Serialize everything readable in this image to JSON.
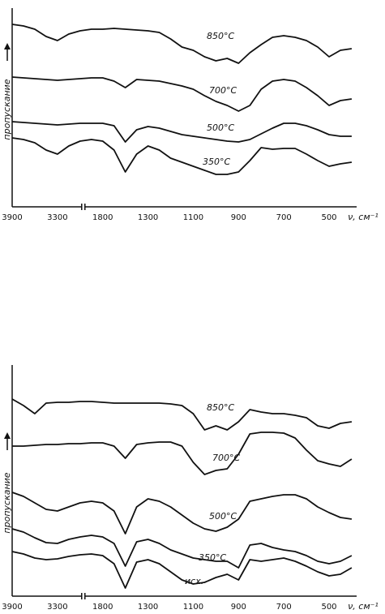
{
  "chart_data": [
    {
      "type": "line",
      "y_label": "пропускание",
      "x_label": "ν, см⁻¹",
      "categories": [
        "3900",
        null,
        null,
        null,
        "3300",
        null,
        null,
        null,
        "1800",
        null,
        null,
        null,
        "1300",
        null,
        null,
        null,
        "1100",
        null,
        null,
        null,
        "900",
        null,
        null,
        null,
        "700",
        null,
        null,
        null,
        "500",
        null,
        null
      ],
      "ylim": [
        0,
        245
      ],
      "series": [
        {
          "name": "850°C",
          "color": "#111111",
          "values": [
            225,
            223,
            219,
            210,
            205,
            213,
            217,
            219,
            219,
            220,
            219,
            218,
            217,
            215,
            207,
            197,
            193,
            185,
            180,
            183,
            177,
            190,
            200,
            209,
            211,
            209,
            205,
            197,
            185,
            193,
            195
          ]
        },
        {
          "name": "700°C",
          "color": "#111111",
          "values": [
            160,
            159,
            158,
            157,
            156,
            157,
            158,
            159,
            159,
            155,
            147,
            157,
            156,
            155,
            152,
            149,
            145,
            137,
            130,
            125,
            118,
            125,
            145,
            155,
            157,
            155,
            147,
            137,
            125,
            131,
            133
          ]
        },
        {
          "name": "500°C",
          "color": "#111111",
          "values": [
            105,
            104,
            103,
            102,
            101,
            102,
            103,
            103,
            103,
            100,
            80,
            95,
            99,
            97,
            93,
            89,
            87,
            85,
            83,
            81,
            80,
            83,
            90,
            97,
            103,
            103,
            100,
            95,
            89,
            87,
            87
          ]
        },
        {
          "name": "350°C",
          "color": "#111111",
          "values": [
            85,
            83,
            79,
            70,
            65,
            75,
            81,
            83,
            81,
            70,
            43,
            65,
            75,
            70,
            60,
            55,
            50,
            45,
            40,
            40,
            43,
            57,
            73,
            71,
            72,
            72,
            65,
            57,
            50,
            53,
            55
          ]
        }
      ]
    },
    {
      "type": "line",
      "y_label": "пропускание",
      "x_label": "ν, см⁻¹",
      "categories": [
        "3900",
        null,
        null,
        null,
        "3300",
        null,
        null,
        null,
        "1800",
        null,
        null,
        null,
        "1300",
        null,
        null,
        null,
        "1100",
        null,
        null,
        null,
        "900",
        null,
        null,
        null,
        "700",
        null,
        null,
        null,
        "500",
        null,
        null
      ],
      "ylim": [
        0,
        285
      ],
      "series": [
        {
          "name": "850°C",
          "color": "#111111",
          "values": [
            243,
            235,
            225,
            238,
            239,
            239,
            240,
            240,
            239,
            238,
            238,
            238,
            238,
            238,
            237,
            235,
            225,
            205,
            210,
            205,
            215,
            230,
            227,
            225,
            225,
            223,
            220,
            210,
            207,
            213,
            215
          ]
        },
        {
          "name": "700°C",
          "color": "#111111",
          "values": [
            185,
            185,
            186,
            187,
            187,
            188,
            188,
            189,
            189,
            185,
            170,
            187,
            189,
            190,
            190,
            185,
            165,
            150,
            155,
            157,
            175,
            200,
            202,
            202,
            201,
            195,
            180,
            167,
            163,
            160,
            169
          ]
        },
        {
          "name": "500°C",
          "color": "#111111",
          "values": [
            128,
            123,
            115,
            107,
            105,
            110,
            115,
            117,
            115,
            105,
            77,
            110,
            120,
            117,
            110,
            100,
            90,
            83,
            80,
            85,
            95,
            117,
            120,
            123,
            125,
            125,
            120,
            110,
            103,
            97,
            95
          ]
        },
        {
          "name": "350°C",
          "color": "#111111",
          "values": [
            83,
            79,
            72,
            66,
            65,
            70,
            73,
            75,
            73,
            65,
            37,
            67,
            70,
            65,
            57,
            52,
            47,
            45,
            43,
            43,
            35,
            63,
            65,
            60,
            57,
            55,
            50,
            43,
            40,
            43,
            50
          ]
        },
        {
          "name": "исх.",
          "color": "#111111",
          "values": [
            55,
            52,
            47,
            45,
            46,
            49,
            51,
            52,
            50,
            40,
            10,
            42,
            45,
            40,
            30,
            20,
            15,
            17,
            23,
            27,
            20,
            45,
            43,
            45,
            47,
            43,
            37,
            30,
            25,
            27,
            35
          ]
        }
      ]
    }
  ]
}
